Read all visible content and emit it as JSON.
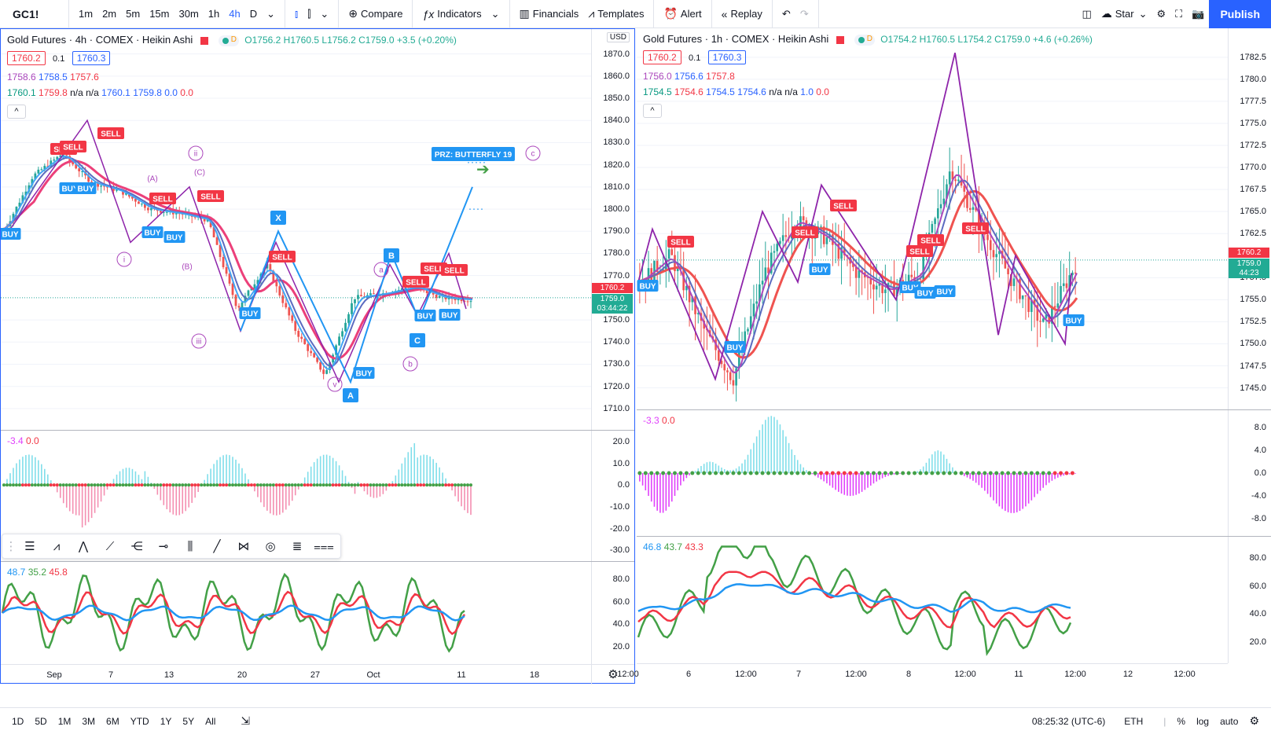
{
  "toolbar": {
    "symbol": "GC1!",
    "intervals": [
      "1m",
      "2m",
      "5m",
      "15m",
      "30m",
      "1h",
      "4h",
      "D"
    ],
    "active_interval": "4h",
    "compare": "Compare",
    "indicators": "Indicators",
    "financials": "Financials",
    "templates": "Templates",
    "alert": "Alert",
    "replay": "Replay",
    "star": "Star",
    "publish": "Publish"
  },
  "left": {
    "title": "Gold Futures · 4h · COMEX · Heikin Ashi",
    "ohlc": {
      "o": "O1756.2",
      "h": "H1760.5",
      "l": "L1756.2",
      "c": "C1759.0",
      "chg": "+3.5 (+0.20%)"
    },
    "input1": "1760.2",
    "input_mid": "0.1",
    "input2": "1760.3",
    "row2": [
      "1758.6",
      "1758.5",
      "1757.6"
    ],
    "row3": [
      "1760.1",
      "1759.8",
      "n/a",
      "n/a",
      "1760.1",
      "1759.8",
      "0.0",
      "0.0"
    ],
    "currency": "USD",
    "price_axis": [
      "1870.0",
      "1860.0",
      "1850.0",
      "1840.0",
      "1830.0",
      "1820.0",
      "1810.0",
      "1800.0",
      "1790.0",
      "1780.0",
      "1770.0",
      "1750.0",
      "1740.0",
      "1730.0",
      "1720.0",
      "1710.0"
    ],
    "tag_red": "1760.2",
    "tag_green": "1759.0",
    "tag_timer": "03:44:22",
    "osc_legend": [
      "-3.4",
      "0.0"
    ],
    "osc_axis": [
      "20.0",
      "10.0",
      "0.0",
      "-10.0",
      "-20.0",
      "-30.0"
    ],
    "rsi_legend": [
      "48.7",
      "35.2",
      "45.8"
    ],
    "rsi_axis": [
      "80.0",
      "60.0",
      "40.0",
      "20.0"
    ],
    "time_axis": [
      "Sep",
      "7",
      "13",
      "20",
      "27",
      "Oct",
      "11",
      "18"
    ],
    "annotations": {
      "prz": "PRZ: BUTTERFLY 19",
      "x": "X",
      "a": "A",
      "b": "B",
      "c": "C",
      "waves": [
        "i",
        "ii",
        "iii",
        "v",
        "(A)",
        "(B)",
        "(C)",
        "a",
        "b",
        "c"
      ]
    },
    "signals": {
      "buy": "BUY",
      "sell": "SELL"
    }
  },
  "right": {
    "title": "Gold Futures · 1h · COMEX · Heikin Ashi",
    "ohlc": {
      "o": "O1754.2",
      "h": "H1760.5",
      "l": "L1754.2",
      "c": "C1759.0",
      "chg": "+4.6 (+0.26%)"
    },
    "input1": "1760.2",
    "input_mid": "0.1",
    "input2": "1760.3",
    "row2": [
      "1756.0",
      "1756.6",
      "1757.8"
    ],
    "row3": [
      "1754.5",
      "1754.6",
      "1754.5",
      "1754.6",
      "n/a",
      "n/a",
      "1.0",
      "0.0"
    ],
    "price_axis": [
      "1782.5",
      "1780.0",
      "1777.5",
      "1775.0",
      "1772.5",
      "1770.0",
      "1767.5",
      "1765.0",
      "1762.5",
      "1757.5",
      "1755.0",
      "1752.5",
      "1750.0",
      "1747.5",
      "1745.0"
    ],
    "tag_red": "1760.2",
    "tag_green": "1759.0",
    "tag_timer": "44:23",
    "osc_legend": [
      "-3.3",
      "0.0"
    ],
    "osc_axis": [
      "8.0",
      "4.0",
      "0.0",
      "-4.0",
      "-8.0"
    ],
    "rsi_legend": [
      "46.8",
      "43.7",
      "43.3"
    ],
    "rsi_axis": [
      "80.0",
      "60.0",
      "40.0",
      "20.0"
    ],
    "time_axis": [
      "12:00",
      "6",
      "12:00",
      "7",
      "12:00",
      "8",
      "12:00",
      "11",
      "12:00",
      "12",
      "12:00"
    ],
    "signals": {
      "buy": "BUY",
      "sell": "SELL"
    }
  },
  "bottom": {
    "ranges": [
      "1D",
      "5D",
      "1M",
      "3M",
      "6M",
      "YTD",
      "1Y",
      "5Y",
      "All"
    ],
    "clock": "08:25:32 (UTC-6)",
    "session": "ETH",
    "percent": "%",
    "log": "log",
    "auto": "auto"
  },
  "colors": {
    "up": "#26a69a",
    "down": "#ef5350",
    "accent": "#2962ff",
    "buy": "#2196f3",
    "sell": "#f23645",
    "wave": "#ab47bc"
  },
  "chart_data": [
    {
      "type": "candlestick",
      "title": "Gold Futures · 4h · COMEX · Heikin Ashi",
      "ylim": [
        1705,
        1872
      ],
      "x": [
        "Sep",
        "7",
        "13",
        "20",
        "27",
        "Oct",
        "11",
        "18"
      ],
      "approx_close_path": [
        1790,
        1815,
        1825,
        1812,
        1808,
        1800,
        1798,
        1795,
        1755,
        1775,
        1745,
        1725,
        1760,
        1762,
        1765,
        1760,
        1759
      ]
    },
    {
      "type": "candlestick",
      "title": "Gold Futures · 1h · COMEX · Heikin Ashi",
      "ylim": [
        1743,
        1784
      ],
      "x": [
        "12:00",
        "6",
        "12:00",
        "7",
        "12:00",
        "8",
        "12:00",
        "11",
        "12:00",
        "12",
        "12:00"
      ],
      "approx_close_path": [
        1757,
        1760,
        1752,
        1746,
        1758,
        1764,
        1762,
        1758,
        1756,
        1758,
        1770,
        1763,
        1757,
        1752,
        1759
      ]
    }
  ]
}
